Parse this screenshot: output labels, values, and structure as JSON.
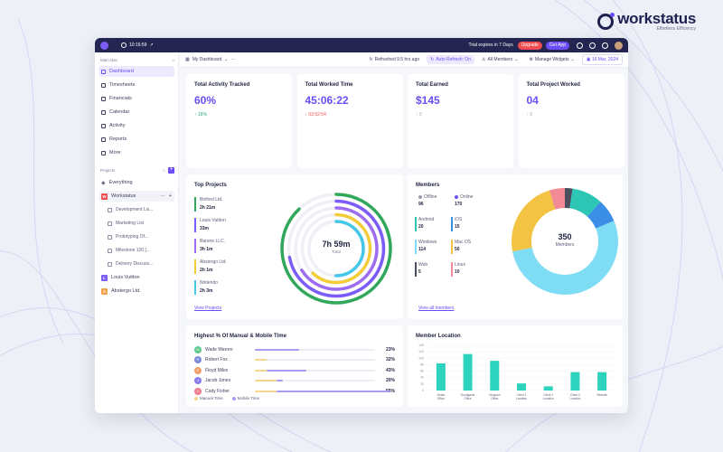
{
  "brand": {
    "name": "workstatus",
    "tagline": "Effortless Efficiency"
  },
  "topbar": {
    "timer": "10:16:59",
    "trial_text": "Trial expires in 7 Days",
    "upgrade_label": "Upgrade",
    "get_app_label": "Get App"
  },
  "sidebar": {
    "header": "Main Nav",
    "items": [
      {
        "label": "Dashboard",
        "active": true
      },
      {
        "label": "Timesheets"
      },
      {
        "label": "Financials"
      },
      {
        "label": "Calendar"
      },
      {
        "label": "Activity"
      },
      {
        "label": "Reports"
      },
      {
        "label": "More"
      }
    ],
    "projects_header": "Projects",
    "projects": [
      {
        "label": "Everything"
      },
      {
        "label": "Workstatus",
        "badge": "W",
        "color": "#f04e4e"
      },
      {
        "label": "Development Lis...",
        "sub": true
      },
      {
        "label": "Marketing List",
        "sub": true
      },
      {
        "label": "Prototyping Of...",
        "sub": true
      },
      {
        "label": "Milestone 120 [...",
        "sub": true
      },
      {
        "label": "Delivery Discuss...",
        "sub": true
      },
      {
        "label": "Louis Vuitton",
        "badge": "L",
        "color": "#7b5cf7"
      },
      {
        "label": "Abstergo Ltd.",
        "badge": "A",
        "color": "#f5a04a"
      }
    ]
  },
  "subbar": {
    "dashboard": "My Dashboard",
    "refreshed": "Refreshed 9.5 hrs ago",
    "auto_refresh": "Auto Refresh: On",
    "members": "All Members",
    "widgets": "Manage Widgets",
    "date": "16 Mar, 2024"
  },
  "stats": [
    {
      "title": "Total Activity Tracked",
      "value": "60%",
      "change": "15%",
      "dir": "up",
      "color": "#22a86b"
    },
    {
      "title": "Total Worked Time",
      "value": "45:06:22",
      "change": "03:52:54",
      "dir": "down",
      "color": "#f04e4e"
    },
    {
      "title": "Total Earned",
      "value": "$145",
      "change": "0",
      "dir": "up",
      "color": "#9a9eb5"
    },
    {
      "title": "Total Project Worked",
      "value": "04",
      "change": "0",
      "dir": "up",
      "color": "#9a9eb5"
    }
  ],
  "top_projects": {
    "title": "Top Projects",
    "total_time": "7h 59m",
    "total_label": "Total",
    "link": "View Projects",
    "projects": [
      {
        "name": "Binford Ltd.",
        "time": "2h 21m",
        "color": "#2fa85a",
        "fraction": 0.88
      },
      {
        "name": "Louis Vuitton",
        "time": "33m",
        "color": "#7b5cf7",
        "fraction": 0.72
      },
      {
        "name": "Barone LLC.",
        "time": "3h 1m",
        "color": "#9d6cf0",
        "fraction": 0.66
      },
      {
        "name": "Abstergo Ltd.",
        "time": "2h 1m",
        "color": "#f3cc3a",
        "fraction": 0.62
      },
      {
        "name": "Nintendo",
        "time": "2h 3m",
        "color": "#45c7e8",
        "fraction": 0.5
      }
    ]
  },
  "members": {
    "title": "Members",
    "total": "350",
    "total_label": "Members",
    "link": "View all members",
    "stats": [
      {
        "label": "Offline",
        "value": "96",
        "color": "#9a9eb5"
      },
      {
        "label": "Online",
        "value": "170",
        "color": "#6b4cf5"
      },
      {
        "label": "Android",
        "value": "20",
        "color": "#2dc6b4"
      },
      {
        "label": "iOS",
        "value": "15",
        "color": "#3a8ee6"
      },
      {
        "label": "Windows",
        "value": "114",
        "color": "#7fdcf5"
      },
      {
        "label": "Mac OS",
        "value": "50",
        "color": "#f3c444"
      },
      {
        "label": "Web",
        "value": "5",
        "color": "#4a4f5e"
      },
      {
        "label": "Linux",
        "value": "10",
        "color": "#f28b95"
      }
    ]
  },
  "highest": {
    "title": "Highest % Of Manual & Mobile Time",
    "legend_manual": "Manual Time",
    "legend_mobile": "Mobile Time",
    "manual_color": "#f7d58a",
    "mobile_color": "#a99af5",
    "rows": [
      {
        "name": "Wade Warren",
        "pct": "23%",
        "initial": "W",
        "color": "#5ec98a",
        "manual": 0,
        "mobile": 0.37
      },
      {
        "name": "Robert Fox",
        "pct": "32%",
        "initial": "R",
        "color": "#7b8bd9",
        "manual": 0.1,
        "mobile": 0
      },
      {
        "name": "Floyd Miles",
        "pct": "43%",
        "initial": "F",
        "color": "#f0a06a",
        "manual": 0.1,
        "mobile": 0.33
      },
      {
        "name": "Jacob Jones",
        "pct": "20%",
        "initial": "J",
        "color": "#8a7df0",
        "manual": 0.18,
        "mobile": 0.05
      },
      {
        "name": "Cody Fisher",
        "pct": "55%",
        "initial": "C",
        "color": "#ef7c8e",
        "manual": 0.18,
        "mobile": 0.95
      }
    ]
  },
  "chart_data": {
    "type": "bar",
    "title": "Member Location",
    "categories": [
      "Noida Office",
      "Goodgame Office",
      "Gurgaon Office",
      "Client 1 Location",
      "Client 2 Location",
      "Client 3 Location",
      "Remote"
    ],
    "values": [
      84,
      113,
      92,
      22,
      13,
      57,
      57
    ],
    "yticks": [
      0,
      20,
      40,
      60,
      80,
      100,
      120,
      140
    ],
    "ylim": [
      0,
      140
    ],
    "color": "#2ed3bd"
  }
}
